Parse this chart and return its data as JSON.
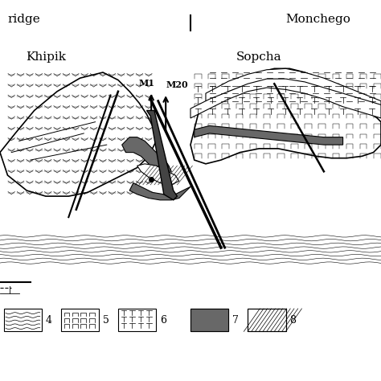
{
  "title_left": "ridge",
  "title_right": "Monchego",
  "label_khipik": "Khipik",
  "label_sopcha": "Sopcha",
  "label_m1": "M1",
  "label_m20": "M20",
  "legend_items": [
    "4",
    "5",
    "6",
    "7",
    "8"
  ],
  "bg_color": "#ffffff",
  "line_color": "#000000",
  "dark_fill": "#666666",
  "light_fill": "#cccccc"
}
